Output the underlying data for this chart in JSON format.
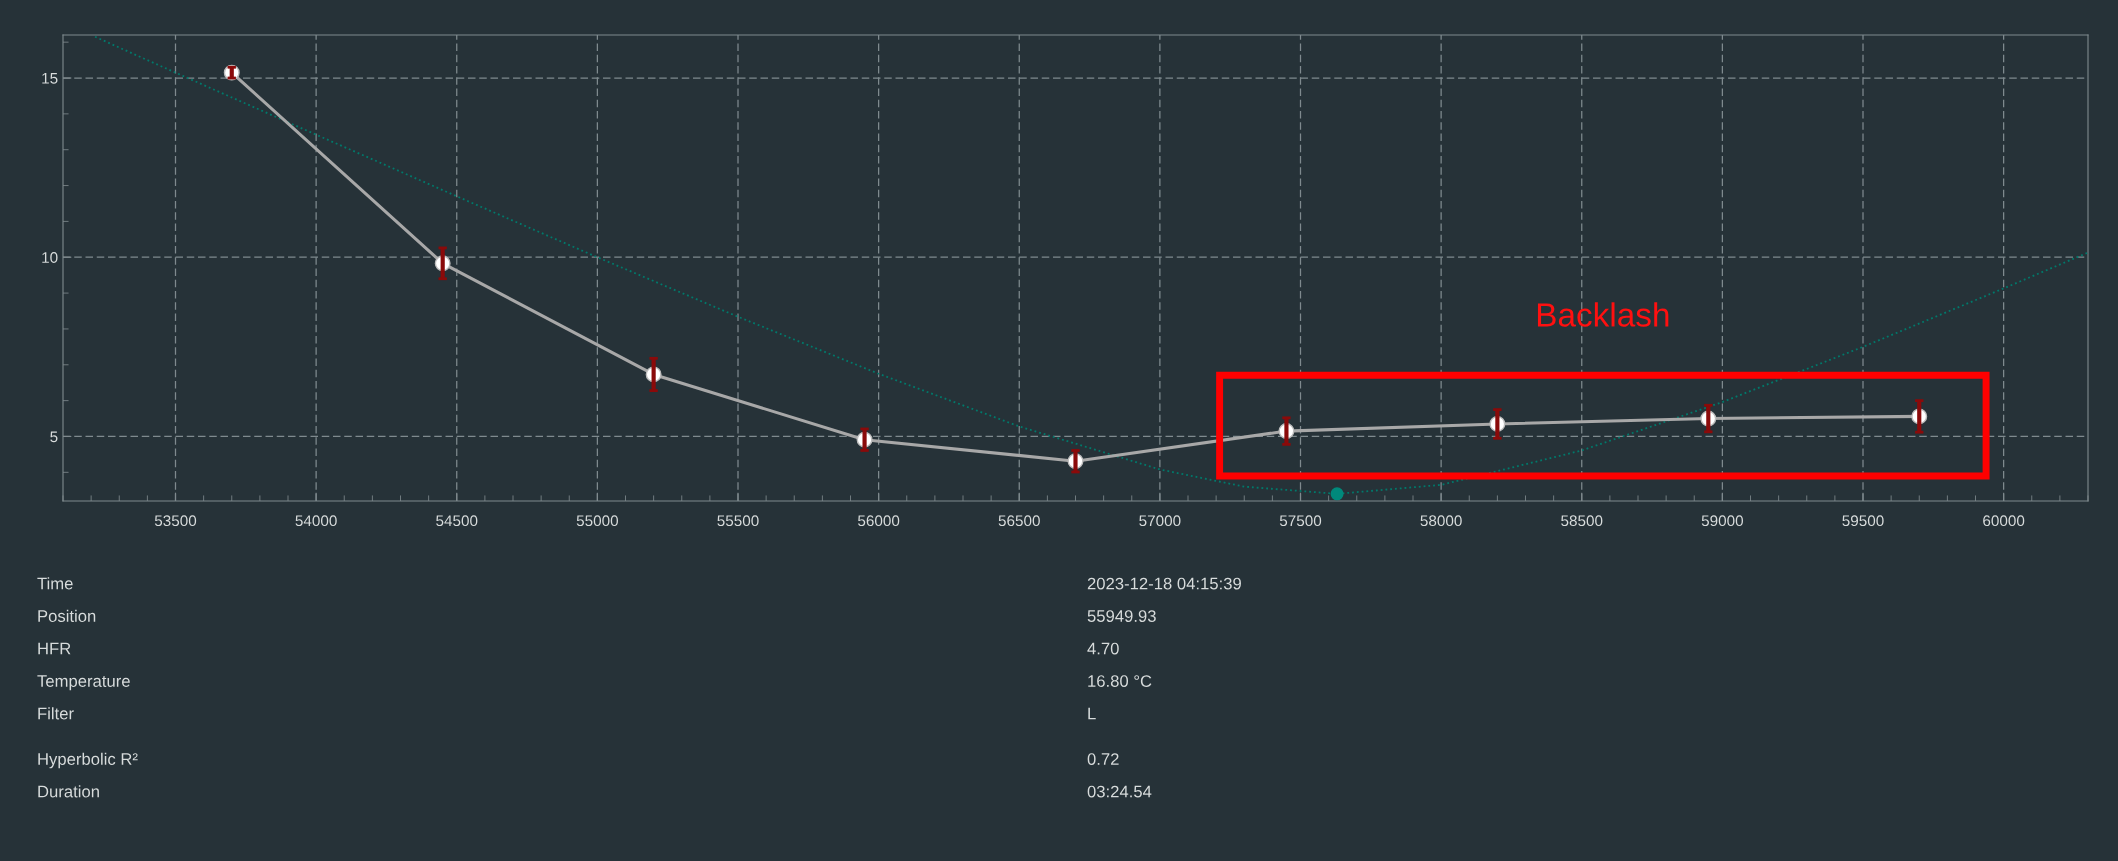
{
  "chart_data": {
    "type": "line",
    "xlim": [
      53100,
      60300
    ],
    "ylim": [
      3.2,
      16.2
    ],
    "xticks": [
      53500,
      54000,
      54500,
      55000,
      55500,
      56000,
      56500,
      57000,
      57500,
      58000,
      58500,
      59000,
      59500,
      60000
    ],
    "yticks": [
      5,
      10,
      15
    ],
    "grid": true,
    "legend": false,
    "series": [
      {
        "type": "line",
        "color": "#00796b",
        "line_style": "dotted",
        "marker": "none",
        "x": [
          53214,
          53500,
          54000,
          54500,
          55000,
          55500,
          56000,
          56500,
          57000,
          57300,
          57630,
          58000,
          58500,
          59000,
          59500,
          60000,
          60300
        ],
        "values": [
          16.15,
          15.15,
          13.42,
          11.7,
          10.0,
          8.34,
          6.75,
          5.28,
          4.08,
          3.6,
          3.4,
          3.65,
          4.61,
          5.96,
          7.5,
          9.13,
          10.13
        ]
      },
      {
        "type": "scatter",
        "color": "#00897b",
        "marker": "circle",
        "x": [
          57630
        ],
        "values": [
          3.4
        ]
      },
      {
        "color": "#a8a8a8",
        "marker": "circle",
        "line_style": "solid",
        "x": [
          53700,
          54450,
          55200,
          55950,
          56700,
          57450,
          58200,
          58950,
          59700
        ],
        "values": [
          15.15,
          9.83,
          6.73,
          4.91,
          4.31,
          5.15,
          5.35,
          5.5,
          5.56
        ],
        "errors": [
          0.15,
          0.43,
          0.45,
          0.3,
          0.3,
          0.37,
          0.4,
          0.37,
          0.44
        ]
      }
    ],
    "annotations": [
      "Backlash",
      "Time",
      "2023-12-18 04:15:39",
      "Position",
      "55949.93",
      "HFR",
      "4.70",
      "Temperature",
      "16.80 °C",
      "Filter",
      "L",
      "Hyperbolic R²",
      "0.72",
      "Duration",
      "03:24.54"
    ]
  }
}
